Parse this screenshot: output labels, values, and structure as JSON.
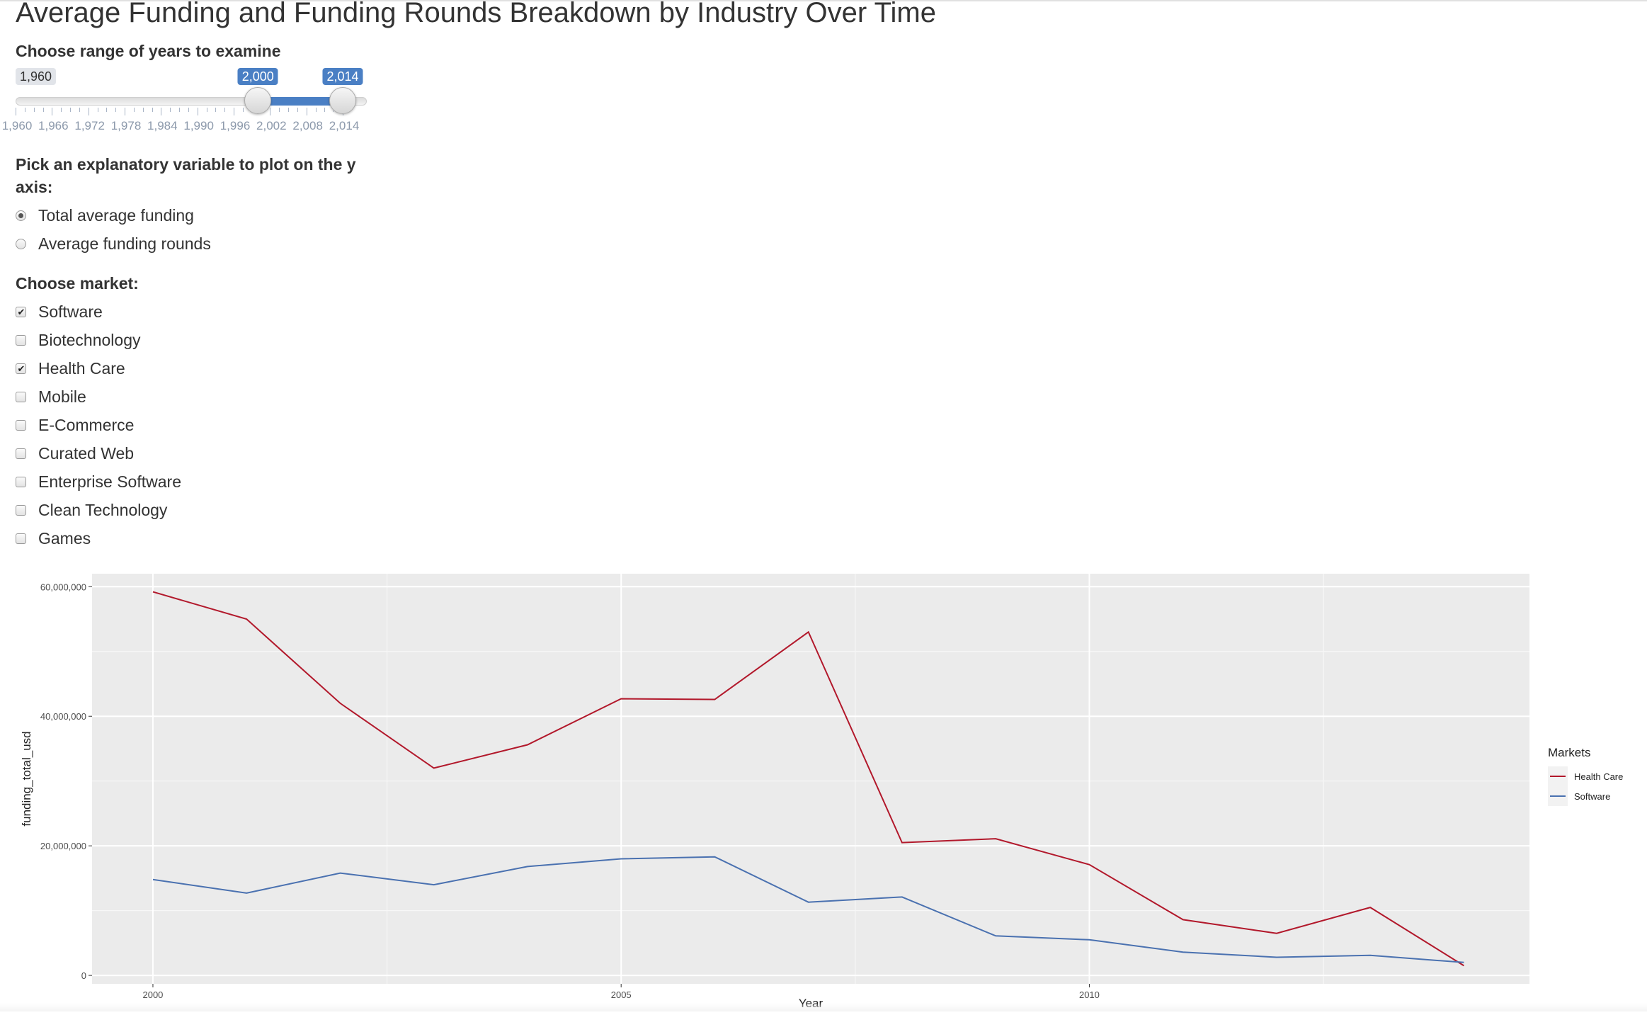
{
  "page": {
    "title": "Average Funding and Funding Rounds Breakdown by Industry Over Time"
  },
  "slider": {
    "label": "Choose range of years to examine",
    "min": 1960,
    "max": 2014,
    "from": 2000,
    "to": 2014,
    "min_text": "1,960",
    "from_text": "2,000",
    "to_text": "2,014",
    "tick_labels": [
      "1,960",
      "1,966",
      "1,972",
      "1,978",
      "1,984",
      "1,990",
      "1,996",
      "2,002",
      "2,008",
      "2,014"
    ],
    "accent_color": "#4a7fc4"
  },
  "yvar": {
    "label": "Pick an explanatory variable to plot on the y axis:",
    "options": [
      {
        "label": "Total average funding",
        "selected": true
      },
      {
        "label": "Average funding rounds",
        "selected": false
      }
    ]
  },
  "market": {
    "label": "Choose market:",
    "options": [
      {
        "label": "Software",
        "checked": true
      },
      {
        "label": "Biotechnology",
        "checked": false
      },
      {
        "label": "Health Care",
        "checked": true
      },
      {
        "label": "Mobile",
        "checked": false
      },
      {
        "label": "E-Commerce",
        "checked": false
      },
      {
        "label": "Curated Web",
        "checked": false
      },
      {
        "label": "Enterprise Software",
        "checked": false
      },
      {
        "label": "Clean Technology",
        "checked": false
      },
      {
        "label": "Games",
        "checked": false
      }
    ]
  },
  "chart_data": {
    "type": "line",
    "title": "",
    "xlabel": "Year",
    "ylabel": "funding_total_usd",
    "xlim": [
      1999.35,
      2014.7
    ],
    "ylim": [
      -1300000,
      62000000
    ],
    "x_ticks": [
      2000,
      2005,
      2010
    ],
    "x_tick_labels": [
      "2000",
      "2005",
      "2010"
    ],
    "y_ticks": [
      0,
      20000000,
      40000000,
      60000000
    ],
    "y_tick_labels": [
      "0",
      "20,000,000",
      "40,000,000",
      "60,000,000"
    ],
    "grid": true,
    "panel_color": "#ebebeb",
    "legend": {
      "title": "Markets",
      "position": "right"
    },
    "x": [
      2000,
      2001,
      2002,
      2003,
      2004,
      2005,
      2006,
      2007,
      2008,
      2009,
      2010,
      2011,
      2012,
      2013,
      2014
    ],
    "series": [
      {
        "name": "Health Care",
        "color": "#b2182b",
        "values": [
          59200000,
          55000000,
          42000000,
          32000000,
          35600000,
          42700000,
          42600000,
          53000000,
          20500000,
          21100000,
          17100000,
          8600000,
          6500000,
          10500000,
          1500000
        ]
      },
      {
        "name": "Software",
        "color": "#4a71b0",
        "values": [
          14800000,
          12700000,
          15800000,
          14000000,
          16800000,
          18000000,
          18300000,
          11300000,
          12100000,
          6100000,
          5500000,
          3600000,
          2800000,
          3100000,
          2000000
        ]
      }
    ]
  }
}
